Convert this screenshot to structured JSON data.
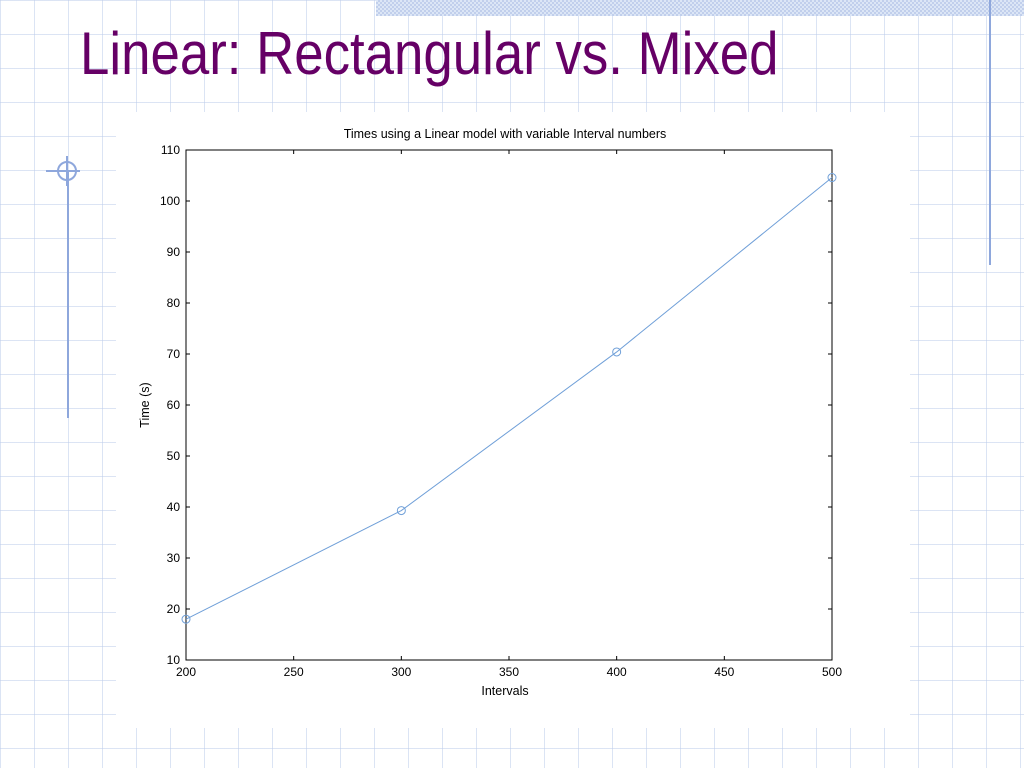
{
  "slide": {
    "title": "Linear: Rectangular vs. Mixed"
  },
  "colors": {
    "title": "#660066",
    "series_line": "#6f9fd8",
    "accent_rule": "#8ea7dc",
    "background_grid": "#bfcdeb"
  },
  "chart_data": {
    "type": "line",
    "title": "Times using a Linear model with variable Interval numbers",
    "xlabel": "Intervals",
    "ylabel": "Time (s)",
    "xlim": [
      200,
      500
    ],
    "ylim": [
      10,
      110
    ],
    "xticks": [
      200,
      250,
      300,
      350,
      400,
      450,
      500
    ],
    "yticks": [
      10,
      20,
      30,
      40,
      50,
      60,
      70,
      80,
      90,
      100,
      110
    ],
    "grid": false,
    "marker": "circle",
    "x": [
      200,
      300,
      400,
      500
    ],
    "y": [
      18,
      39.3,
      70.4,
      104.6
    ]
  }
}
